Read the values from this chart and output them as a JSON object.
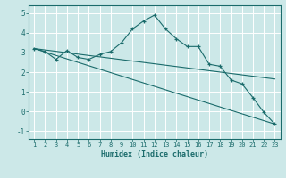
{
  "xlabel": "Humidex (Indice chaleur)",
  "xlim": [
    0.5,
    23.5
  ],
  "ylim": [
    -1.4,
    5.4
  ],
  "yticks": [
    -1,
    0,
    1,
    2,
    3,
    4,
    5
  ],
  "xticks": [
    1,
    2,
    3,
    4,
    5,
    6,
    7,
    8,
    9,
    10,
    11,
    12,
    13,
    14,
    15,
    16,
    17,
    18,
    19,
    20,
    21,
    22,
    23
  ],
  "background_color": "#cce8e8",
  "line_color": "#1a6b6b",
  "grid_color": "#ffffff",
  "line1_x": [
    1,
    2,
    3,
    4,
    5,
    6,
    7,
    8,
    9,
    10,
    11,
    12,
    13,
    14,
    15,
    16,
    17,
    18,
    19,
    20,
    21,
    22,
    23
  ],
  "line1_y": [
    3.2,
    3.05,
    2.65,
    3.1,
    2.75,
    2.65,
    2.9,
    3.05,
    3.5,
    4.2,
    4.6,
    4.9,
    4.2,
    3.7,
    3.3,
    3.3,
    2.4,
    2.3,
    1.6,
    1.4,
    0.7,
    -0.05,
    -0.65
  ],
  "line2_x": [
    1,
    23
  ],
  "line2_y": [
    3.2,
    1.65
  ],
  "line3_x": [
    1,
    23
  ],
  "line3_y": [
    3.2,
    -0.65
  ],
  "xlabel_fontsize": 6.0,
  "tick_fontsize": 5.0
}
